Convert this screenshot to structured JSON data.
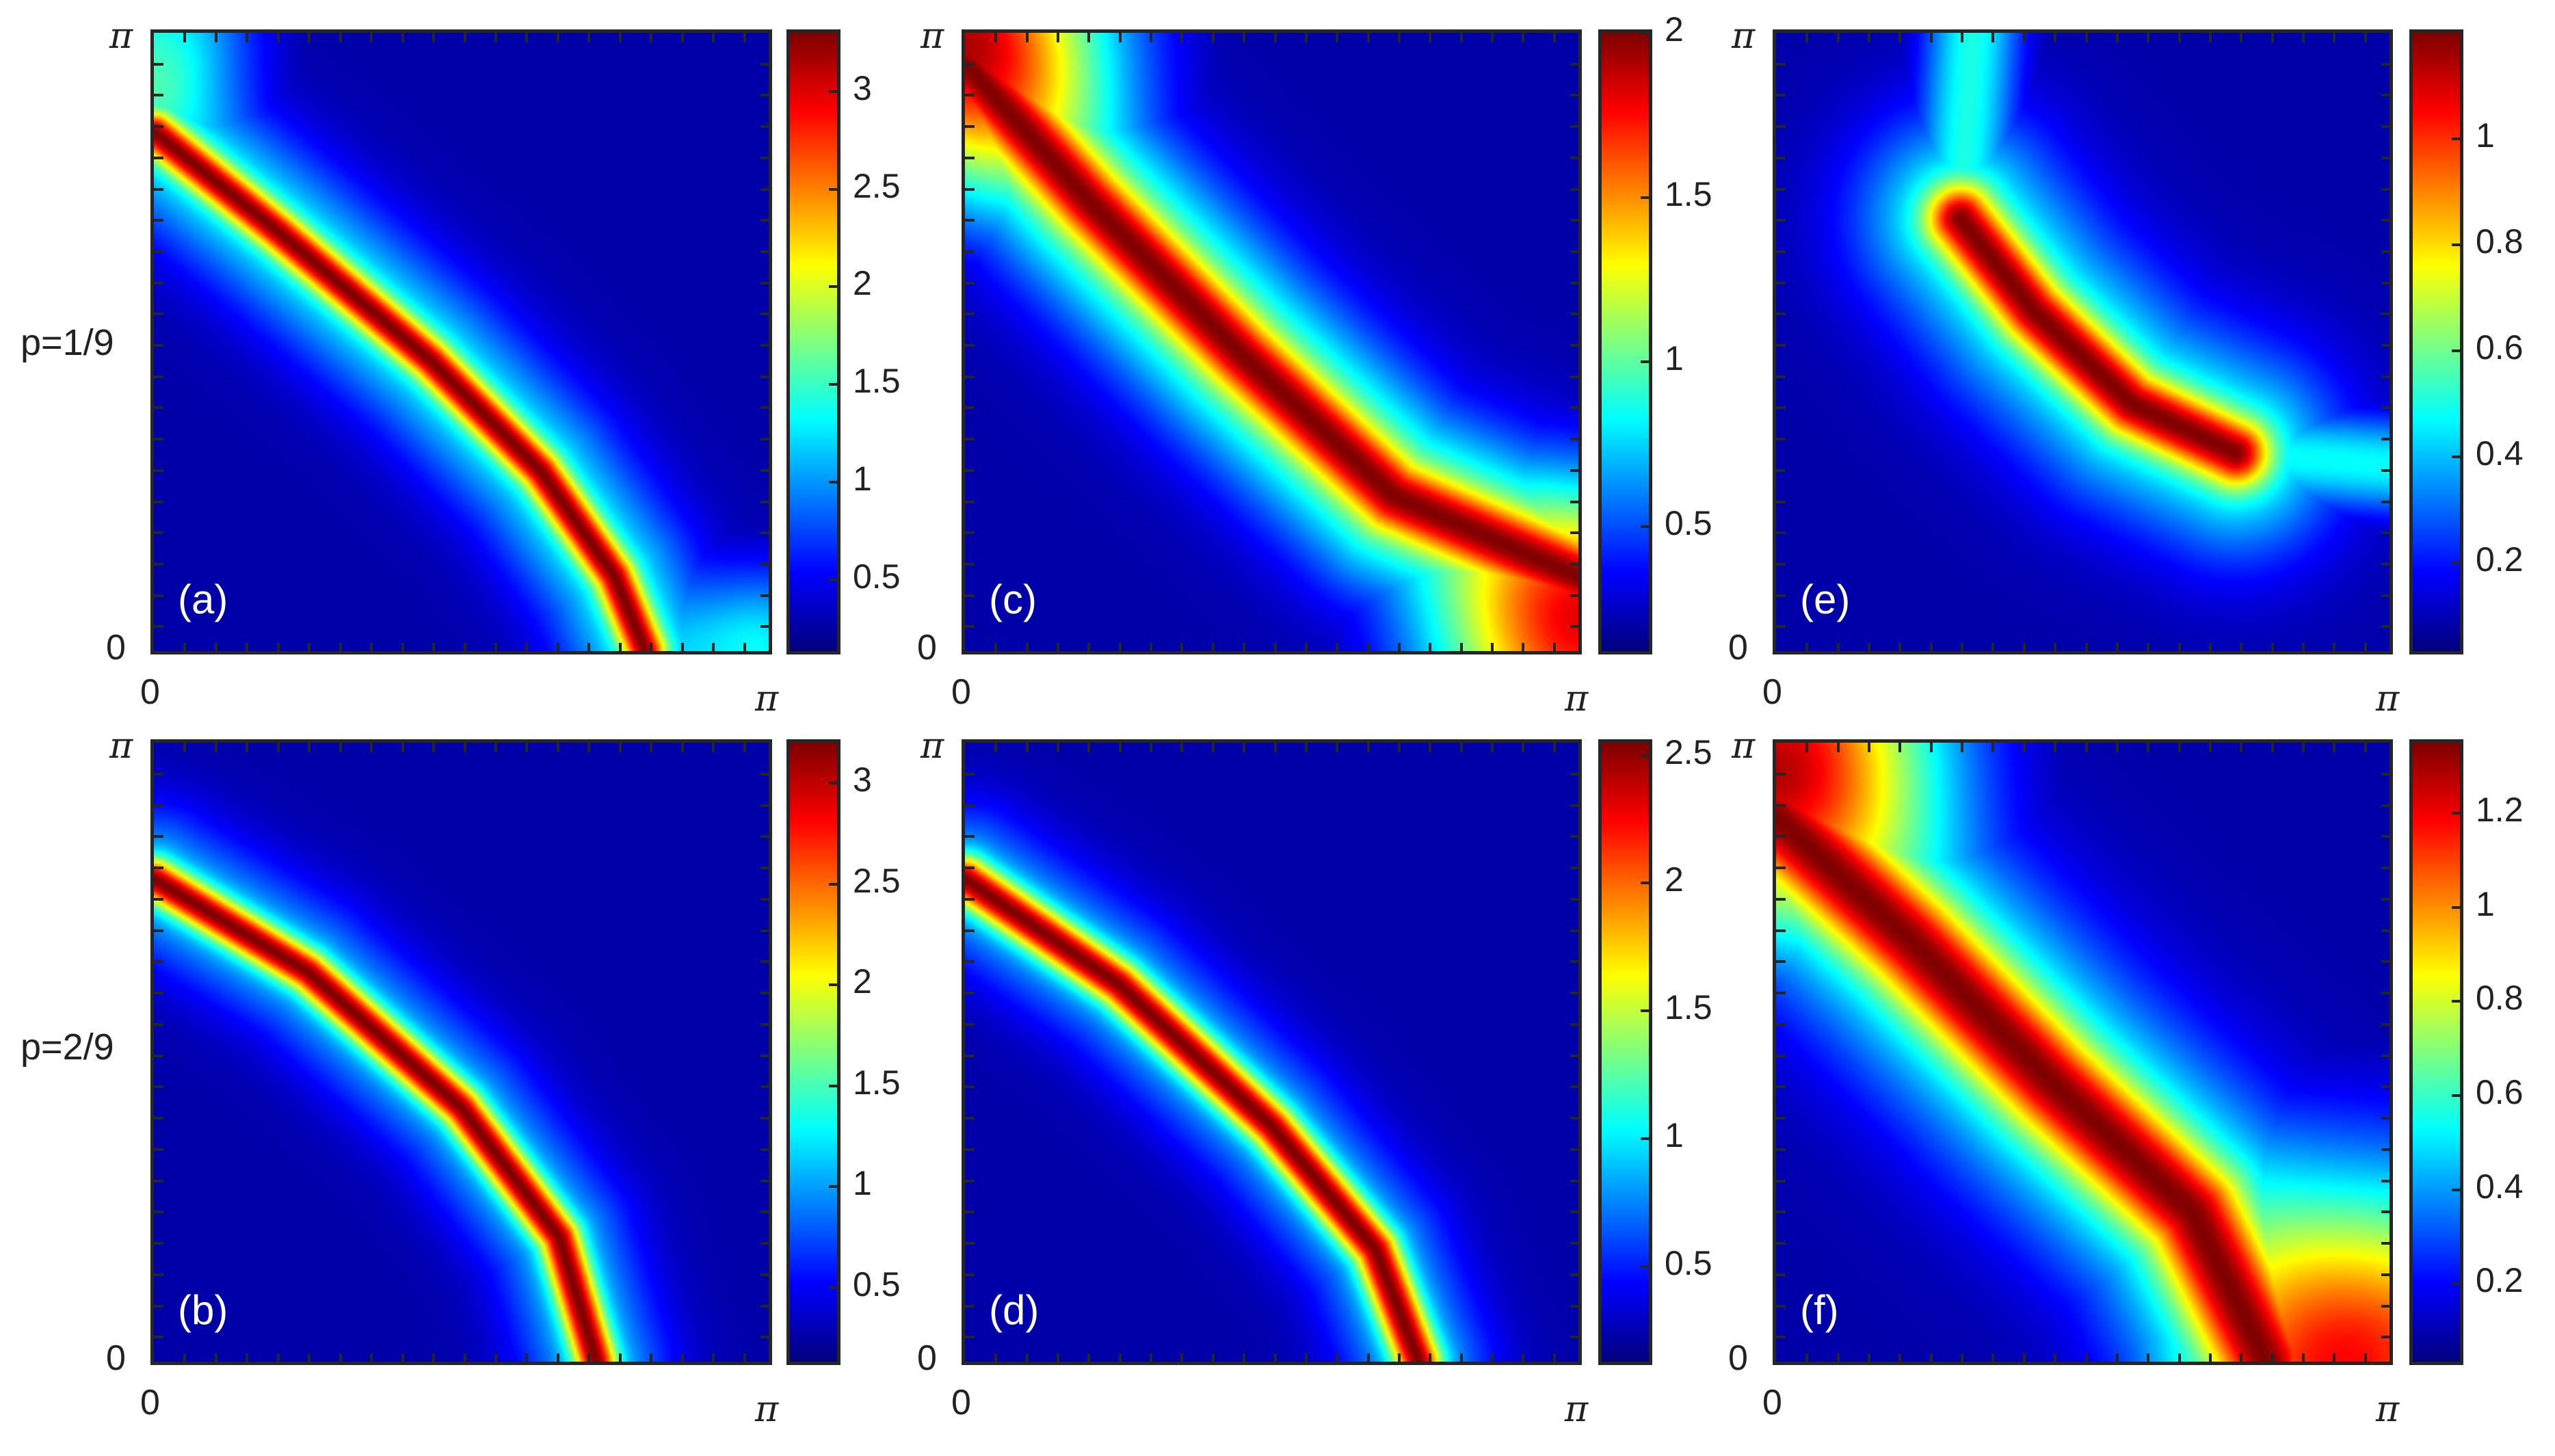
{
  "row_labels": [
    "p=1/9",
    "p=2/9"
  ],
  "chart_data": [
    {
      "type": "heatmap",
      "panel": "(a)",
      "colormap": "jet",
      "xticks": [
        "0",
        "π"
      ],
      "yticks": [
        "0",
        "π"
      ],
      "xlim": [
        0,
        "π"
      ],
      "ylim": [
        0,
        "π"
      ],
      "colorbar": {
        "range": [
          0.1,
          3.3
        ],
        "ticks": [
          0.5,
          1,
          1.5,
          2,
          2.5,
          3
        ],
        "tick_labels": [
          "0.5",
          "1",
          "1.5",
          "2",
          "2.5",
          "3"
        ]
      }
    },
    {
      "type": "heatmap",
      "panel": "(c)",
      "colormap": "jet",
      "xticks": [
        "0",
        "π"
      ],
      "yticks": [
        "0",
        "π"
      ],
      "xlim": [
        0,
        "π"
      ],
      "ylim": [
        0,
        "π"
      ],
      "colorbar": {
        "range": [
          0.1,
          2.0
        ],
        "ticks": [
          0.5,
          1,
          1.5,
          2
        ],
        "tick_labels": [
          "0.5",
          "1",
          "1.5",
          "2"
        ]
      }
    },
    {
      "type": "heatmap",
      "panel": "(e)",
      "colormap": "jet",
      "xticks": [
        "0",
        "π"
      ],
      "yticks": [
        "0",
        "π"
      ],
      "xlim": [
        0,
        "π"
      ],
      "ylim": [
        0,
        "π"
      ],
      "colorbar": {
        "range": [
          0.02,
          1.2
        ],
        "ticks": [
          0.2,
          0.4,
          0.6,
          0.8,
          1
        ],
        "tick_labels": [
          "0.2",
          "0.4",
          "0.6",
          "0.8",
          "1"
        ]
      }
    },
    {
      "type": "heatmap",
      "panel": "(b)",
      "colormap": "jet",
      "xticks": [
        "0",
        "π"
      ],
      "yticks": [
        "0",
        "π"
      ],
      "xlim": [
        0,
        "π"
      ],
      "ylim": [
        0,
        "π"
      ],
      "colorbar": {
        "range": [
          0.1,
          3.2
        ],
        "ticks": [
          0.5,
          1,
          1.5,
          2,
          2.5,
          3
        ],
        "tick_labels": [
          "0.5",
          "1",
          "1.5",
          "2",
          "2.5",
          "3"
        ]
      }
    },
    {
      "type": "heatmap",
      "panel": "(d)",
      "colormap": "jet",
      "xticks": [
        "0",
        "π"
      ],
      "yticks": [
        "0",
        "π"
      ],
      "xlim": [
        0,
        "π"
      ],
      "ylim": [
        0,
        "π"
      ],
      "colorbar": {
        "range": [
          0.1,
          2.55
        ],
        "ticks": [
          0.5,
          1,
          1.5,
          2,
          2.5
        ],
        "tick_labels": [
          "0.5",
          "1",
          "1.5",
          "2",
          "2.5"
        ]
      }
    },
    {
      "type": "heatmap",
      "panel": "(f)",
      "colormap": "jet",
      "xticks": [
        "0",
        "π"
      ],
      "yticks": [
        "0",
        "π"
      ],
      "xlim": [
        0,
        "π"
      ],
      "ylim": [
        0,
        "π"
      ],
      "colorbar": {
        "range": [
          0.02,
          1.35
        ],
        "ticks": [
          0.2,
          0.4,
          0.6,
          0.8,
          1,
          1.2
        ],
        "tick_labels": [
          "0.2",
          "0.4",
          "0.6",
          "0.8",
          "1",
          "1.2"
        ]
      }
    }
  ]
}
